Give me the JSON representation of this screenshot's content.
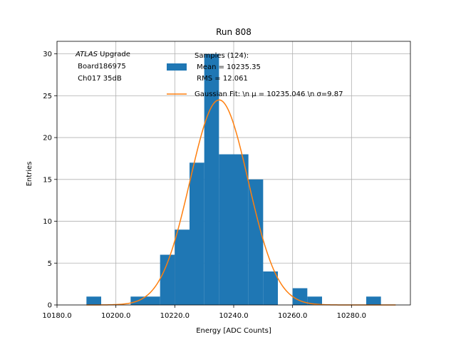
{
  "chart_data": {
    "type": "bar",
    "title": "Run 808",
    "xlabel": "Energy [ADC Counts]",
    "ylabel": "Entries",
    "xlim": [
      10180,
      10300
    ],
    "ylim": [
      0,
      31.5
    ],
    "grid": true,
    "x_ticks": [
      10180,
      10200,
      10220,
      10240,
      10260,
      10280
    ],
    "x_tick_labels": [
      "10180.0",
      "10200.0",
      "10220.0",
      "10240.0",
      "10260.0",
      "10280.0"
    ],
    "y_ticks": [
      0,
      5,
      10,
      15,
      20,
      25,
      30
    ],
    "y_tick_labels": [
      "0",
      "5",
      "10",
      "15",
      "20",
      "25",
      "30"
    ],
    "bin_width": 5,
    "bins": [
      {
        "x0": 10190,
        "count": 1
      },
      {
        "x0": 10205,
        "count": 1
      },
      {
        "x0": 10210,
        "count": 1
      },
      {
        "x0": 10215,
        "count": 6
      },
      {
        "x0": 10220,
        "count": 9
      },
      {
        "x0": 10225,
        "count": 17
      },
      {
        "x0": 10230,
        "count": 30
      },
      {
        "x0": 10235,
        "count": 18
      },
      {
        "x0": 10240,
        "count": 18
      },
      {
        "x0": 10245,
        "count": 15
      },
      {
        "x0": 10250,
        "count": 4
      },
      {
        "x0": 10260,
        "count": 2
      },
      {
        "x0": 10265,
        "count": 1
      },
      {
        "x0": 10285,
        "count": 1
      }
    ],
    "fit": {
      "mu": 10235.046,
      "sigma": 9.87,
      "amplitude": 24.5
    },
    "colors": {
      "histogram": "#1f77b4",
      "fit": "#ff7f0e",
      "grid": "#b0b0b0"
    },
    "annotation": {
      "italic": "ATLAS",
      "rest": " Upgrade",
      "line2": " Board186975",
      "line3": " Ch017 35dB"
    },
    "legend": {
      "placement": "top-right",
      "hist_lines": [
        "Samples (124):",
        " Mean = 10235.35",
        " RMS = 12.061"
      ],
      "fit_label": "Gaussian Fit: \\n μ = 10235.046 \\n σ=9.87"
    }
  }
}
